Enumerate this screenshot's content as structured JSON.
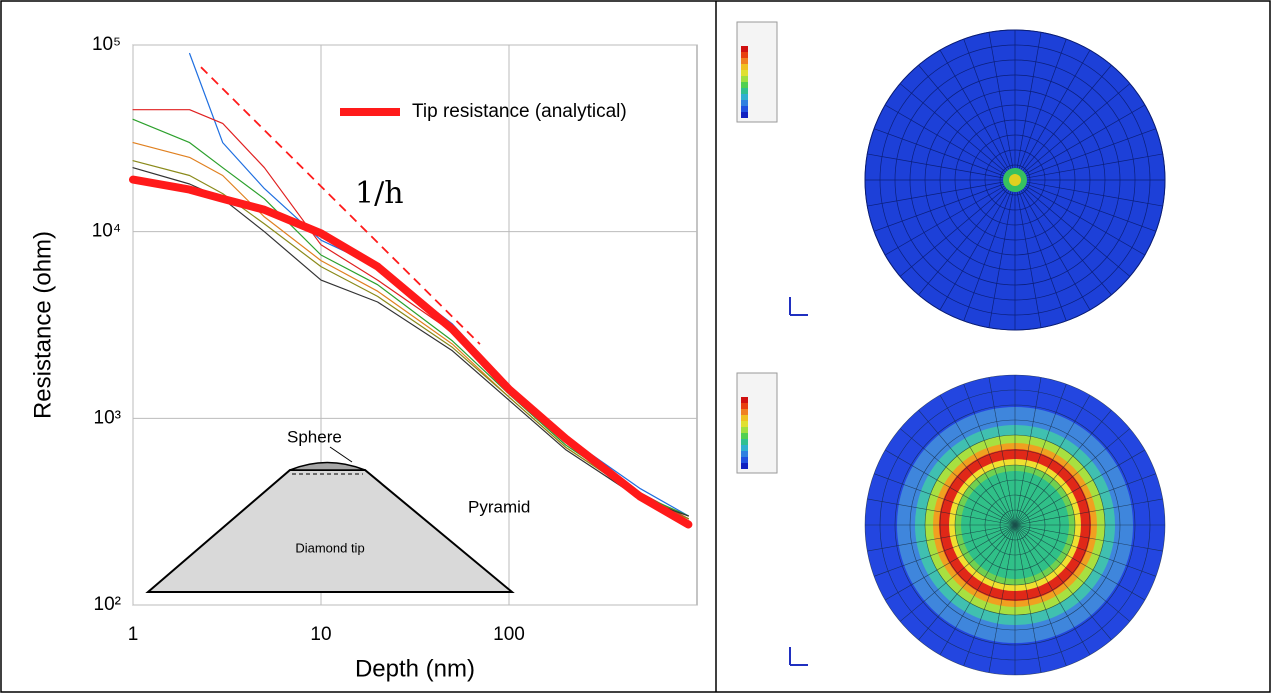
{
  "chart_data": {
    "type": "line",
    "x_label": "Depth (nm)",
    "y_label": "Resistance (ohm)",
    "log_x": true,
    "log_y": true,
    "grid": true,
    "legend_position": "top-right",
    "xlim": [
      1,
      1000
    ],
    "ylim": [
      100,
      100000
    ],
    "xticks": [
      1,
      10,
      100
    ],
    "yticks": [
      {
        "value": 100,
        "label": "10²"
      },
      {
        "value": 1000,
        "label": "10³"
      },
      {
        "value": 10000,
        "label": "10⁴"
      },
      {
        "value": 100000,
        "label": "10⁵"
      }
    ],
    "x": [
      1,
      2,
      3,
      5,
      10,
      20,
      50,
      100,
      200,
      500,
      900
    ],
    "series": [
      {
        "color": "#1f6fe0",
        "values": [
          null,
          90000,
          30000,
          17000,
          9000,
          6500,
          3200,
          1500,
          800,
          420,
          300
        ]
      },
      {
        "color": "#e02020",
        "values": [
          45000,
          45000,
          38000,
          22000,
          8500,
          5500,
          2900,
          1400,
          750,
          400,
          290
        ]
      },
      {
        "color": "#2ca02c",
        "values": [
          40000,
          30000,
          22000,
          15000,
          7500,
          5200,
          2600,
          1350,
          720,
          390,
          300
        ]
      },
      {
        "color": "#e08020",
        "values": [
          30000,
          25000,
          20000,
          12000,
          7000,
          4800,
          2500,
          1300,
          700,
          380,
          290
        ]
      },
      {
        "color": "#8a8a1a",
        "values": [
          24000,
          20000,
          16000,
          11000,
          6500,
          4500,
          2400,
          1300,
          700,
          380,
          290
        ]
      },
      {
        "color": "#333333",
        "values": [
          22000,
          18000,
          15000,
          10000,
          5500,
          4200,
          2300,
          1250,
          680,
          370,
          300
        ]
      },
      {
        "name": "Tip resistance (analytical)",
        "color": "#ff1a1a",
        "values": [
          19000,
          16800,
          15000,
          13100,
          9800,
          6500,
          3000,
          1430,
          780,
          380,
          270
        ]
      }
    ],
    "reference_line": {
      "label": "1/h",
      "color": "#ff1a1a",
      "x": [
        2.3,
        70
      ],
      "values": [
        76000,
        2500
      ]
    },
    "inset": {
      "sphere": "Sphere",
      "pyramid": "Pyramid",
      "tip": "Diamond tip"
    }
  }
}
